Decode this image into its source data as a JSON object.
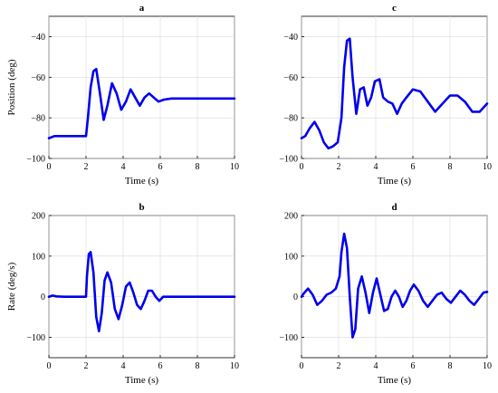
{
  "chart_data": [
    {
      "type": "line",
      "title": "a",
      "xlabel": "Time (s)",
      "ylabel": "Position (deg)",
      "xlim": [
        0,
        10
      ],
      "ylim": [
        -100,
        -30
      ],
      "xticks": [
        0,
        2,
        4,
        6,
        8,
        10
      ],
      "yticks": [
        -100,
        -80,
        -60,
        -40
      ],
      "grid": true,
      "color": "#0000ee",
      "x": [
        0,
        0.3,
        1,
        2,
        2.1,
        2.25,
        2.4,
        2.55,
        2.75,
        2.95,
        3.15,
        3.4,
        3.65,
        3.9,
        4.15,
        4.4,
        4.65,
        4.9,
        5.15,
        5.4,
        5.65,
        5.9,
        6.2,
        6.6,
        7,
        8,
        9,
        10
      ],
      "y": [
        -90,
        -89,
        -89,
        -89,
        -80,
        -65,
        -57,
        -56,
        -68,
        -81,
        -74,
        -63,
        -68,
        -76,
        -72,
        -66,
        -70,
        -74,
        -70,
        -68,
        -70,
        -72,
        -71,
        -70.5,
        -70.5,
        -70.5,
        -70.5,
        -70.5
      ]
    },
    {
      "type": "line",
      "title": "b",
      "xlabel": "Time (s)",
      "ylabel": "Rate (deg/s)",
      "xlim": [
        0,
        10
      ],
      "ylim": [
        -150,
        200
      ],
      "xticks": [
        0,
        2,
        4,
        6,
        8,
        10
      ],
      "yticks": [
        -100,
        0,
        100,
        200
      ],
      "grid": true,
      "color": "#0000ee",
      "x": [
        0,
        0.2,
        0.4,
        0.8,
        1.5,
        2,
        2.05,
        2.15,
        2.25,
        2.4,
        2.55,
        2.7,
        2.85,
        3,
        3.15,
        3.35,
        3.55,
        3.75,
        3.95,
        4.15,
        4.35,
        4.55,
        4.75,
        4.95,
        5.15,
        5.35,
        5.55,
        5.75,
        5.95,
        6.15,
        6.4,
        7,
        8,
        9,
        10
      ],
      "y": [
        0,
        3,
        1,
        0,
        0,
        0,
        50,
        105,
        110,
        60,
        -50,
        -85,
        -40,
        40,
        60,
        35,
        -30,
        -55,
        -20,
        25,
        35,
        10,
        -20,
        -30,
        -10,
        15,
        15,
        0,
        -10,
        0,
        0,
        0,
        0,
        0,
        0
      ]
    },
    {
      "type": "line",
      "title": "c",
      "xlabel": "Time (s)",
      "ylabel": "",
      "xlim": [
        0,
        10
      ],
      "ylim": [
        -100,
        -30
      ],
      "xticks": [
        0,
        2,
        4,
        6,
        8,
        10
      ],
      "yticks": [
        -100,
        -80,
        -60,
        -40
      ],
      "grid": true,
      "color": "#0000ee",
      "x": [
        0,
        0.2,
        0.45,
        0.7,
        0.95,
        1.2,
        1.45,
        1.7,
        1.95,
        2.15,
        2.3,
        2.45,
        2.6,
        2.75,
        2.95,
        3.15,
        3.35,
        3.55,
        3.75,
        3.95,
        4.2,
        4.4,
        4.65,
        4.9,
        5.15,
        5.4,
        5.65,
        6,
        6.4,
        6.8,
        7.2,
        7.6,
        8,
        8.4,
        8.8,
        9.2,
        9.6,
        10
      ],
      "y": [
        -90,
        -89,
        -85,
        -82,
        -86,
        -92,
        -95,
        -94,
        -92,
        -80,
        -55,
        -42,
        -41,
        -60,
        -78,
        -66,
        -65,
        -74,
        -70,
        -62,
        -61,
        -70,
        -72,
        -73,
        -78,
        -73,
        -70,
        -66,
        -67,
        -72,
        -77,
        -73,
        -69,
        -69,
        -72,
        -77,
        -77,
        -73
      ]
    },
    {
      "type": "line",
      "title": "d",
      "xlabel": "Time (s)",
      "ylabel": "",
      "xlim": [
        0,
        10
      ],
      "ylim": [
        -150,
        200
      ],
      "xticks": [
        0,
        2,
        4,
        6,
        8,
        10
      ],
      "yticks": [
        -100,
        0,
        100,
        200
      ],
      "grid": true,
      "color": "#0000ee",
      "x": [
        0,
        0.15,
        0.35,
        0.6,
        0.85,
        1.1,
        1.35,
        1.6,
        1.85,
        2.05,
        2.15,
        2.3,
        2.45,
        2.6,
        2.75,
        2.9,
        3.05,
        3.25,
        3.45,
        3.65,
        3.85,
        4.05,
        4.25,
        4.45,
        4.65,
        4.85,
        5.05,
        5.25,
        5.45,
        5.65,
        5.85,
        6.05,
        6.3,
        6.55,
        6.8,
        7.05,
        7.3,
        7.55,
        7.8,
        8.05,
        8.3,
        8.55,
        8.8,
        9.05,
        9.3,
        9.55,
        9.8,
        10
      ],
      "y": [
        0,
        10,
        20,
        5,
        -20,
        -10,
        5,
        10,
        20,
        50,
        110,
        155,
        120,
        0,
        -100,
        -80,
        20,
        50,
        10,
        -40,
        10,
        45,
        5,
        -35,
        -30,
        0,
        15,
        0,
        -25,
        -10,
        15,
        30,
        15,
        -10,
        -25,
        -10,
        5,
        10,
        -5,
        -15,
        0,
        15,
        5,
        -10,
        -20,
        -5,
        10,
        12
      ]
    }
  ]
}
